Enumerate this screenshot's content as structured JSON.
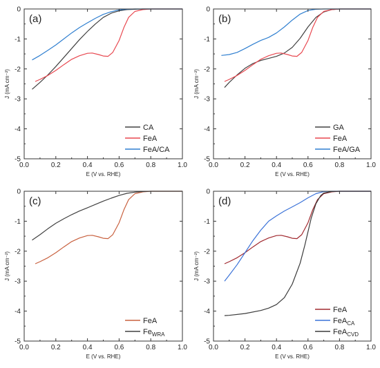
{
  "chart_data": [
    {
      "type": "line",
      "panel_label": "(a)",
      "xlabel": "E (V vs. RHE)",
      "ylabel": "J (mA cm⁻²)",
      "xlim": [
        0.0,
        1.0
      ],
      "ylim": [
        -5,
        0
      ],
      "xticks": [
        "0.0",
        "0.2",
        "0.4",
        "0.6",
        "0.8",
        "1.0"
      ],
      "yticks": [
        "0",
        "-1",
        "-2",
        "-3",
        "-4",
        "-5"
      ],
      "grid": false,
      "legend_position": "bottom-right",
      "series": [
        {
          "name": "CA",
          "color": "#404040",
          "x": [
            0.05,
            0.1,
            0.15,
            0.2,
            0.25,
            0.3,
            0.35,
            0.4,
            0.45,
            0.5,
            0.55,
            0.6,
            0.65,
            0.7,
            0.75,
            0.8,
            1.0
          ],
          "y": [
            -2.68,
            -2.45,
            -2.2,
            -1.92,
            -1.62,
            -1.32,
            -1.02,
            -0.75,
            -0.5,
            -0.28,
            -0.14,
            -0.06,
            -0.02,
            -0.01,
            0,
            0,
            0
          ]
        },
        {
          "name": "FeA",
          "color": "#e8474f",
          "x": [
            0.07,
            0.1,
            0.15,
            0.2,
            0.25,
            0.3,
            0.35,
            0.4,
            0.43,
            0.47,
            0.5,
            0.53,
            0.56,
            0.6,
            0.63,
            0.66,
            0.7,
            0.75,
            0.8,
            0.85,
            1.0
          ],
          "y": [
            -2.42,
            -2.35,
            -2.22,
            -2.05,
            -1.86,
            -1.68,
            -1.56,
            -1.48,
            -1.47,
            -1.52,
            -1.57,
            -1.58,
            -1.45,
            -1.05,
            -0.62,
            -0.28,
            -0.08,
            -0.02,
            0,
            0,
            0
          ]
        },
        {
          "name": "FeA/CA",
          "color": "#2f7fd0",
          "x": [
            0.05,
            0.1,
            0.15,
            0.2,
            0.25,
            0.3,
            0.35,
            0.4,
            0.45,
            0.5,
            0.55,
            0.6,
            0.65,
            0.7,
            0.75,
            0.8,
            1.0
          ],
          "y": [
            -1.7,
            -1.55,
            -1.38,
            -1.2,
            -1.0,
            -0.8,
            -0.62,
            -0.46,
            -0.31,
            -0.18,
            -0.09,
            -0.03,
            -0.01,
            0,
            0,
            0,
            0
          ]
        }
      ]
    },
    {
      "type": "line",
      "panel_label": "(b)",
      "xlabel": "E (V vs. RHE)",
      "ylabel": "J (mA cm⁻²)",
      "xlim": [
        0.0,
        1.0
      ],
      "ylim": [
        -5,
        0
      ],
      "xticks": [
        "0.0",
        "0.2",
        "0.4",
        "0.6",
        "0.8",
        "1.0"
      ],
      "yticks": [
        "0",
        "-1",
        "-2",
        "-3",
        "-4",
        "-5"
      ],
      "grid": false,
      "legend_position": "bottom-right",
      "series": [
        {
          "name": "GA",
          "color": "#404040",
          "x": [
            0.07,
            0.1,
            0.15,
            0.2,
            0.25,
            0.3,
            0.35,
            0.4,
            0.45,
            0.5,
            0.55,
            0.6,
            0.65,
            0.7,
            0.75,
            0.8,
            1.0
          ],
          "y": [
            -2.62,
            -2.45,
            -2.2,
            -1.98,
            -1.82,
            -1.72,
            -1.65,
            -1.58,
            -1.47,
            -1.28,
            -0.98,
            -0.6,
            -0.28,
            -0.1,
            -0.02,
            0,
            0
          ]
        },
        {
          "name": "FeA",
          "color": "#e8474f",
          "x": [
            0.07,
            0.1,
            0.15,
            0.2,
            0.25,
            0.3,
            0.35,
            0.4,
            0.43,
            0.47,
            0.5,
            0.53,
            0.56,
            0.6,
            0.63,
            0.66,
            0.7,
            0.75,
            0.8,
            0.85,
            1.0
          ],
          "y": [
            -2.42,
            -2.35,
            -2.22,
            -2.05,
            -1.86,
            -1.68,
            -1.56,
            -1.48,
            -1.47,
            -1.52,
            -1.57,
            -1.58,
            -1.45,
            -1.05,
            -0.62,
            -0.28,
            -0.08,
            -0.02,
            0,
            0,
            0
          ]
        },
        {
          "name": "FeA/GA",
          "color": "#2f7fd0",
          "x": [
            0.05,
            0.1,
            0.15,
            0.2,
            0.25,
            0.3,
            0.35,
            0.4,
            0.45,
            0.5,
            0.55,
            0.6,
            0.65,
            0.7,
            0.75,
            0.8,
            1.0
          ],
          "y": [
            -1.55,
            -1.52,
            -1.45,
            -1.32,
            -1.18,
            -1.05,
            -0.95,
            -0.8,
            -0.6,
            -0.37,
            -0.17,
            -0.05,
            -0.01,
            0,
            0,
            0,
            0
          ]
        }
      ]
    },
    {
      "type": "line",
      "panel_label": "(c)",
      "xlabel": "E (V vs. RHE)",
      "ylabel": "J (mA cm⁻²)",
      "xlim": [
        0.0,
        1.0
      ],
      "ylim": [
        -5,
        0
      ],
      "xticks": [
        "0.0",
        "0.2",
        "0.4",
        "0.6",
        "0.8",
        "1.0"
      ],
      "yticks": [
        "0",
        "-1",
        "-2",
        "-3",
        "-4",
        "-5"
      ],
      "grid": false,
      "legend_position": "bottom-right",
      "series": [
        {
          "name": "FeA",
          "subscript": "",
          "color": "#c8603e",
          "x": [
            0.07,
            0.1,
            0.15,
            0.2,
            0.25,
            0.3,
            0.35,
            0.4,
            0.43,
            0.47,
            0.5,
            0.53,
            0.56,
            0.6,
            0.63,
            0.66,
            0.7,
            0.75,
            0.8,
            0.85,
            1.0
          ],
          "y": [
            -2.42,
            -2.35,
            -2.22,
            -2.05,
            -1.86,
            -1.68,
            -1.56,
            -1.48,
            -1.47,
            -1.52,
            -1.57,
            -1.58,
            -1.45,
            -1.05,
            -0.62,
            -0.28,
            -0.08,
            -0.02,
            0,
            0,
            0
          ]
        },
        {
          "name": "Fe",
          "subscript": "WRA",
          "color": "#404040",
          "x": [
            0.05,
            0.1,
            0.15,
            0.2,
            0.25,
            0.3,
            0.35,
            0.4,
            0.45,
            0.5,
            0.55,
            0.6,
            0.65,
            0.7,
            0.75,
            0.8,
            1.0
          ],
          "y": [
            -1.63,
            -1.45,
            -1.25,
            -1.07,
            -0.92,
            -0.78,
            -0.66,
            -0.55,
            -0.44,
            -0.33,
            -0.23,
            -0.14,
            -0.07,
            -0.03,
            -0.01,
            0,
            0
          ]
        }
      ]
    },
    {
      "type": "line",
      "panel_label": "(d)",
      "xlabel": "E (V vs. RHE)",
      "ylabel": "J (mA cm⁻²)",
      "xlim": [
        0.0,
        1.0
      ],
      "ylim": [
        -5,
        0
      ],
      "xticks": [
        "0.0",
        "0.2",
        "0.4",
        "0.6",
        "0.8",
        "1.0"
      ],
      "yticks": [
        "0",
        "-1",
        "-2",
        "-3",
        "-4",
        "-5"
      ],
      "grid": false,
      "legend_position": "bottom-right",
      "series": [
        {
          "name": "FeA",
          "subscript": "",
          "color": "#a0282e",
          "x": [
            0.07,
            0.1,
            0.15,
            0.2,
            0.25,
            0.3,
            0.35,
            0.4,
            0.43,
            0.47,
            0.5,
            0.53,
            0.56,
            0.6,
            0.63,
            0.66,
            0.7,
            0.75,
            0.8,
            0.85,
            1.0
          ],
          "y": [
            -2.42,
            -2.35,
            -2.22,
            -2.05,
            -1.86,
            -1.68,
            -1.56,
            -1.48,
            -1.47,
            -1.52,
            -1.57,
            -1.58,
            -1.45,
            -1.05,
            -0.62,
            -0.28,
            -0.08,
            -0.02,
            0,
            0,
            0
          ]
        },
        {
          "name": "FeA",
          "subscript": "CA",
          "color": "#3a72d8",
          "x": [
            0.07,
            0.1,
            0.15,
            0.2,
            0.25,
            0.3,
            0.35,
            0.4,
            0.45,
            0.5,
            0.55,
            0.6,
            0.65,
            0.7,
            0.75,
            0.8,
            1.0
          ],
          "y": [
            -3.0,
            -2.8,
            -2.45,
            -2.05,
            -1.65,
            -1.3,
            -1.0,
            -0.82,
            -0.66,
            -0.52,
            -0.38,
            -0.22,
            -0.08,
            -0.01,
            0,
            0,
            0
          ]
        },
        {
          "name": "FeA",
          "subscript": "CVD",
          "color": "#3a3a3a",
          "x": [
            0.07,
            0.1,
            0.2,
            0.3,
            0.35,
            0.4,
            0.45,
            0.5,
            0.55,
            0.58,
            0.6,
            0.62,
            0.65,
            0.68,
            0.7,
            0.75,
            0.8,
            1.0
          ],
          "y": [
            -4.15,
            -4.14,
            -4.08,
            -3.98,
            -3.9,
            -3.78,
            -3.55,
            -3.1,
            -2.4,
            -1.8,
            -1.35,
            -0.9,
            -0.42,
            -0.15,
            -0.06,
            -0.01,
            0,
            0
          ]
        }
      ]
    }
  ]
}
